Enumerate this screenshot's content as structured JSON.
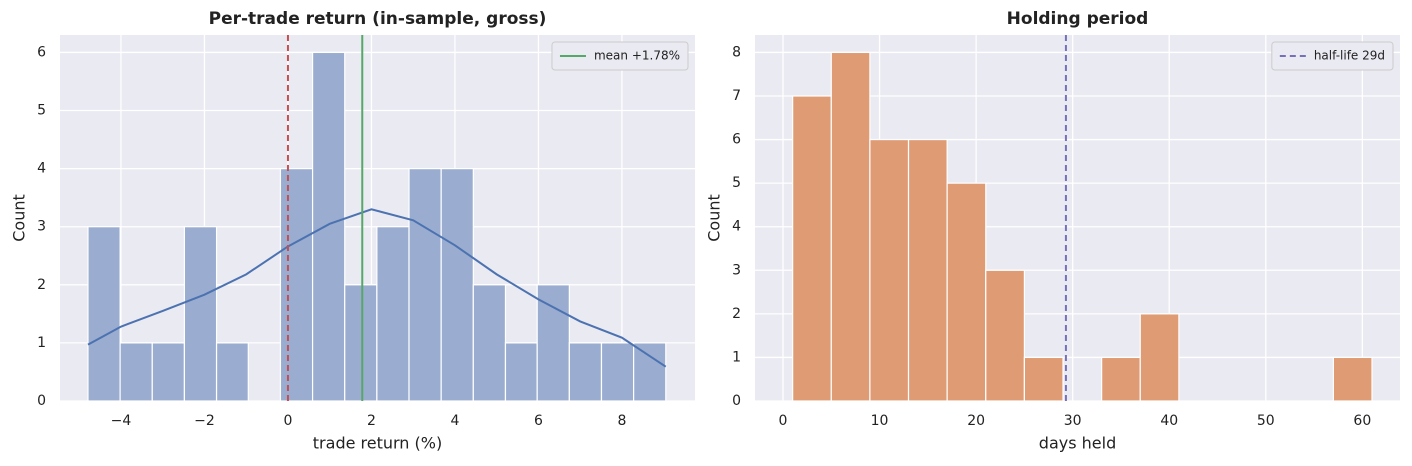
{
  "chart_data": [
    {
      "type": "histogram",
      "title": "Per-trade return (in-sample, gross)",
      "xlabel": "trade return (%)",
      "ylabel": "Count",
      "bins": [
        -4.79,
        -4.02,
        -3.25,
        -2.48,
        -1.71,
        -0.95,
        -0.18,
        0.59,
        1.36,
        2.13,
        2.9,
        3.67,
        4.44,
        5.21,
        5.97,
        6.74,
        7.51,
        8.28,
        9.05
      ],
      "counts": [
        3,
        1,
        1,
        3,
        1,
        0,
        4,
        6,
        2,
        3,
        4,
        4,
        2,
        1,
        2,
        1,
        1,
        1
      ],
      "color": "#9aadd0",
      "kde": {
        "color": "#4c72b0",
        "x": [
          -4.79,
          -4,
          -3,
          -2,
          -1,
          0,
          1,
          2,
          3,
          4,
          5,
          6,
          7,
          8,
          9.05
        ],
        "y": [
          0.97,
          1.28,
          1.55,
          1.83,
          2.18,
          2.66,
          3.05,
          3.3,
          3.11,
          2.68,
          2.18,
          1.75,
          1.37,
          1.09,
          0.59
        ]
      },
      "lines": [
        {
          "value": 0,
          "color": "#c44e52",
          "style": "dashed"
        },
        {
          "value": 1.78,
          "label": "mean +1.78%",
          "color": "#55a868",
          "style": "solid"
        }
      ],
      "xlim": [
        -5.46,
        9.75
      ],
      "ylim": [
        0,
        6.3
      ],
      "xticks": [
        {
          "value": -4,
          "label": "−4"
        },
        {
          "value": -2,
          "label": "−2"
        },
        0,
        2,
        4,
        6,
        8
      ],
      "yticks": [
        0,
        1,
        2,
        3,
        4,
        5,
        6
      ],
      "grid": true,
      "legend": "upper right"
    },
    {
      "type": "histogram",
      "title": "Holding period",
      "xlabel": "days held",
      "ylabel": "Count",
      "bins": [
        1,
        5,
        9,
        13,
        17,
        21,
        25,
        29,
        33,
        37,
        41,
        45,
        49,
        53,
        57,
        61
      ],
      "counts": [
        7,
        8,
        6,
        6,
        5,
        3,
        1,
        0,
        1,
        2,
        0,
        0,
        0,
        0,
        1
      ],
      "color": "#df9b73",
      "lines": [
        {
          "value": 29.3,
          "label": "half-life 29d",
          "color": "#7570b8",
          "style": "dashed"
        }
      ],
      "xlim": [
        -2.9,
        63.9
      ],
      "ylim": [
        0,
        8.4
      ],
      "xticks": [
        0,
        10,
        20,
        30,
        40,
        50,
        60
      ],
      "yticks": [
        0,
        1,
        2,
        3,
        4,
        5,
        6,
        7,
        8
      ],
      "grid": true,
      "legend": "upper right"
    }
  ]
}
